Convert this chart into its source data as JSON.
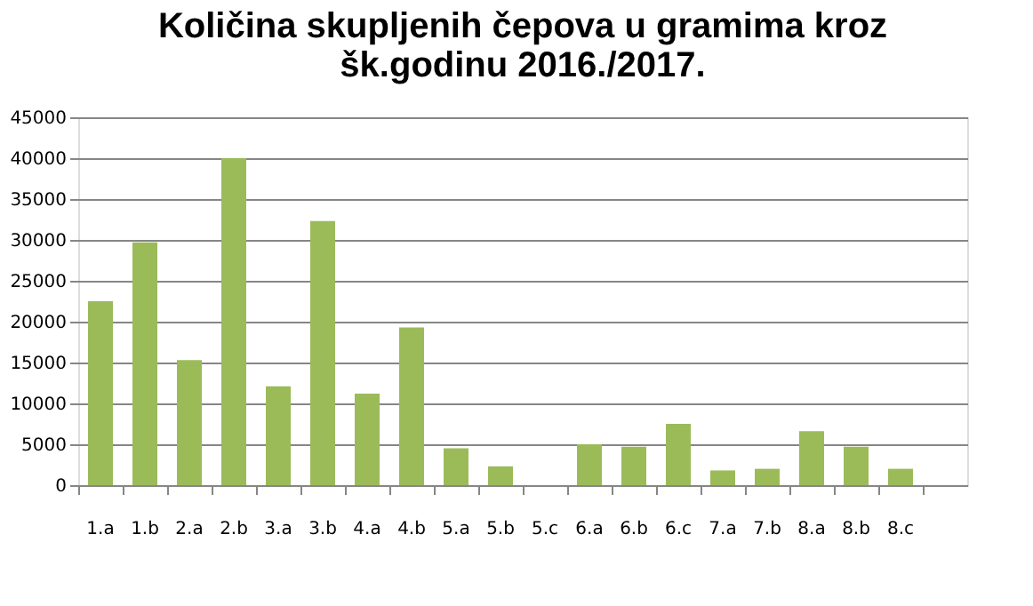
{
  "chart_data": {
    "type": "bar",
    "title": [
      "Količina skupljenih čepova u gramima kroz",
      "šk.godinu 2016./2017."
    ],
    "categories": [
      "1.a",
      "1.b",
      "2.a",
      "2.b",
      "3.a",
      "3.b",
      "4.a",
      "4.b",
      "5.a",
      "5.b",
      "5.c",
      "6.a",
      "6.b",
      "6.c",
      "7.a",
      "7.b",
      "8.a",
      "8.b",
      "8.c",
      null
    ],
    "values": [
      22500,
      29700,
      15300,
      40000,
      12100,
      32300,
      11200,
      19300,
      4500,
      2300,
      null,
      5000,
      4700,
      7500,
      1800,
      2000,
      6600,
      4700,
      2000,
      null
    ],
    "color": "#9bbb59",
    "ylim": [
      0,
      45000
    ],
    "yticks": [
      0,
      5000,
      10000,
      15000,
      20000,
      25000,
      30000,
      35000,
      40000,
      45000
    ],
    "grid": "y"
  }
}
